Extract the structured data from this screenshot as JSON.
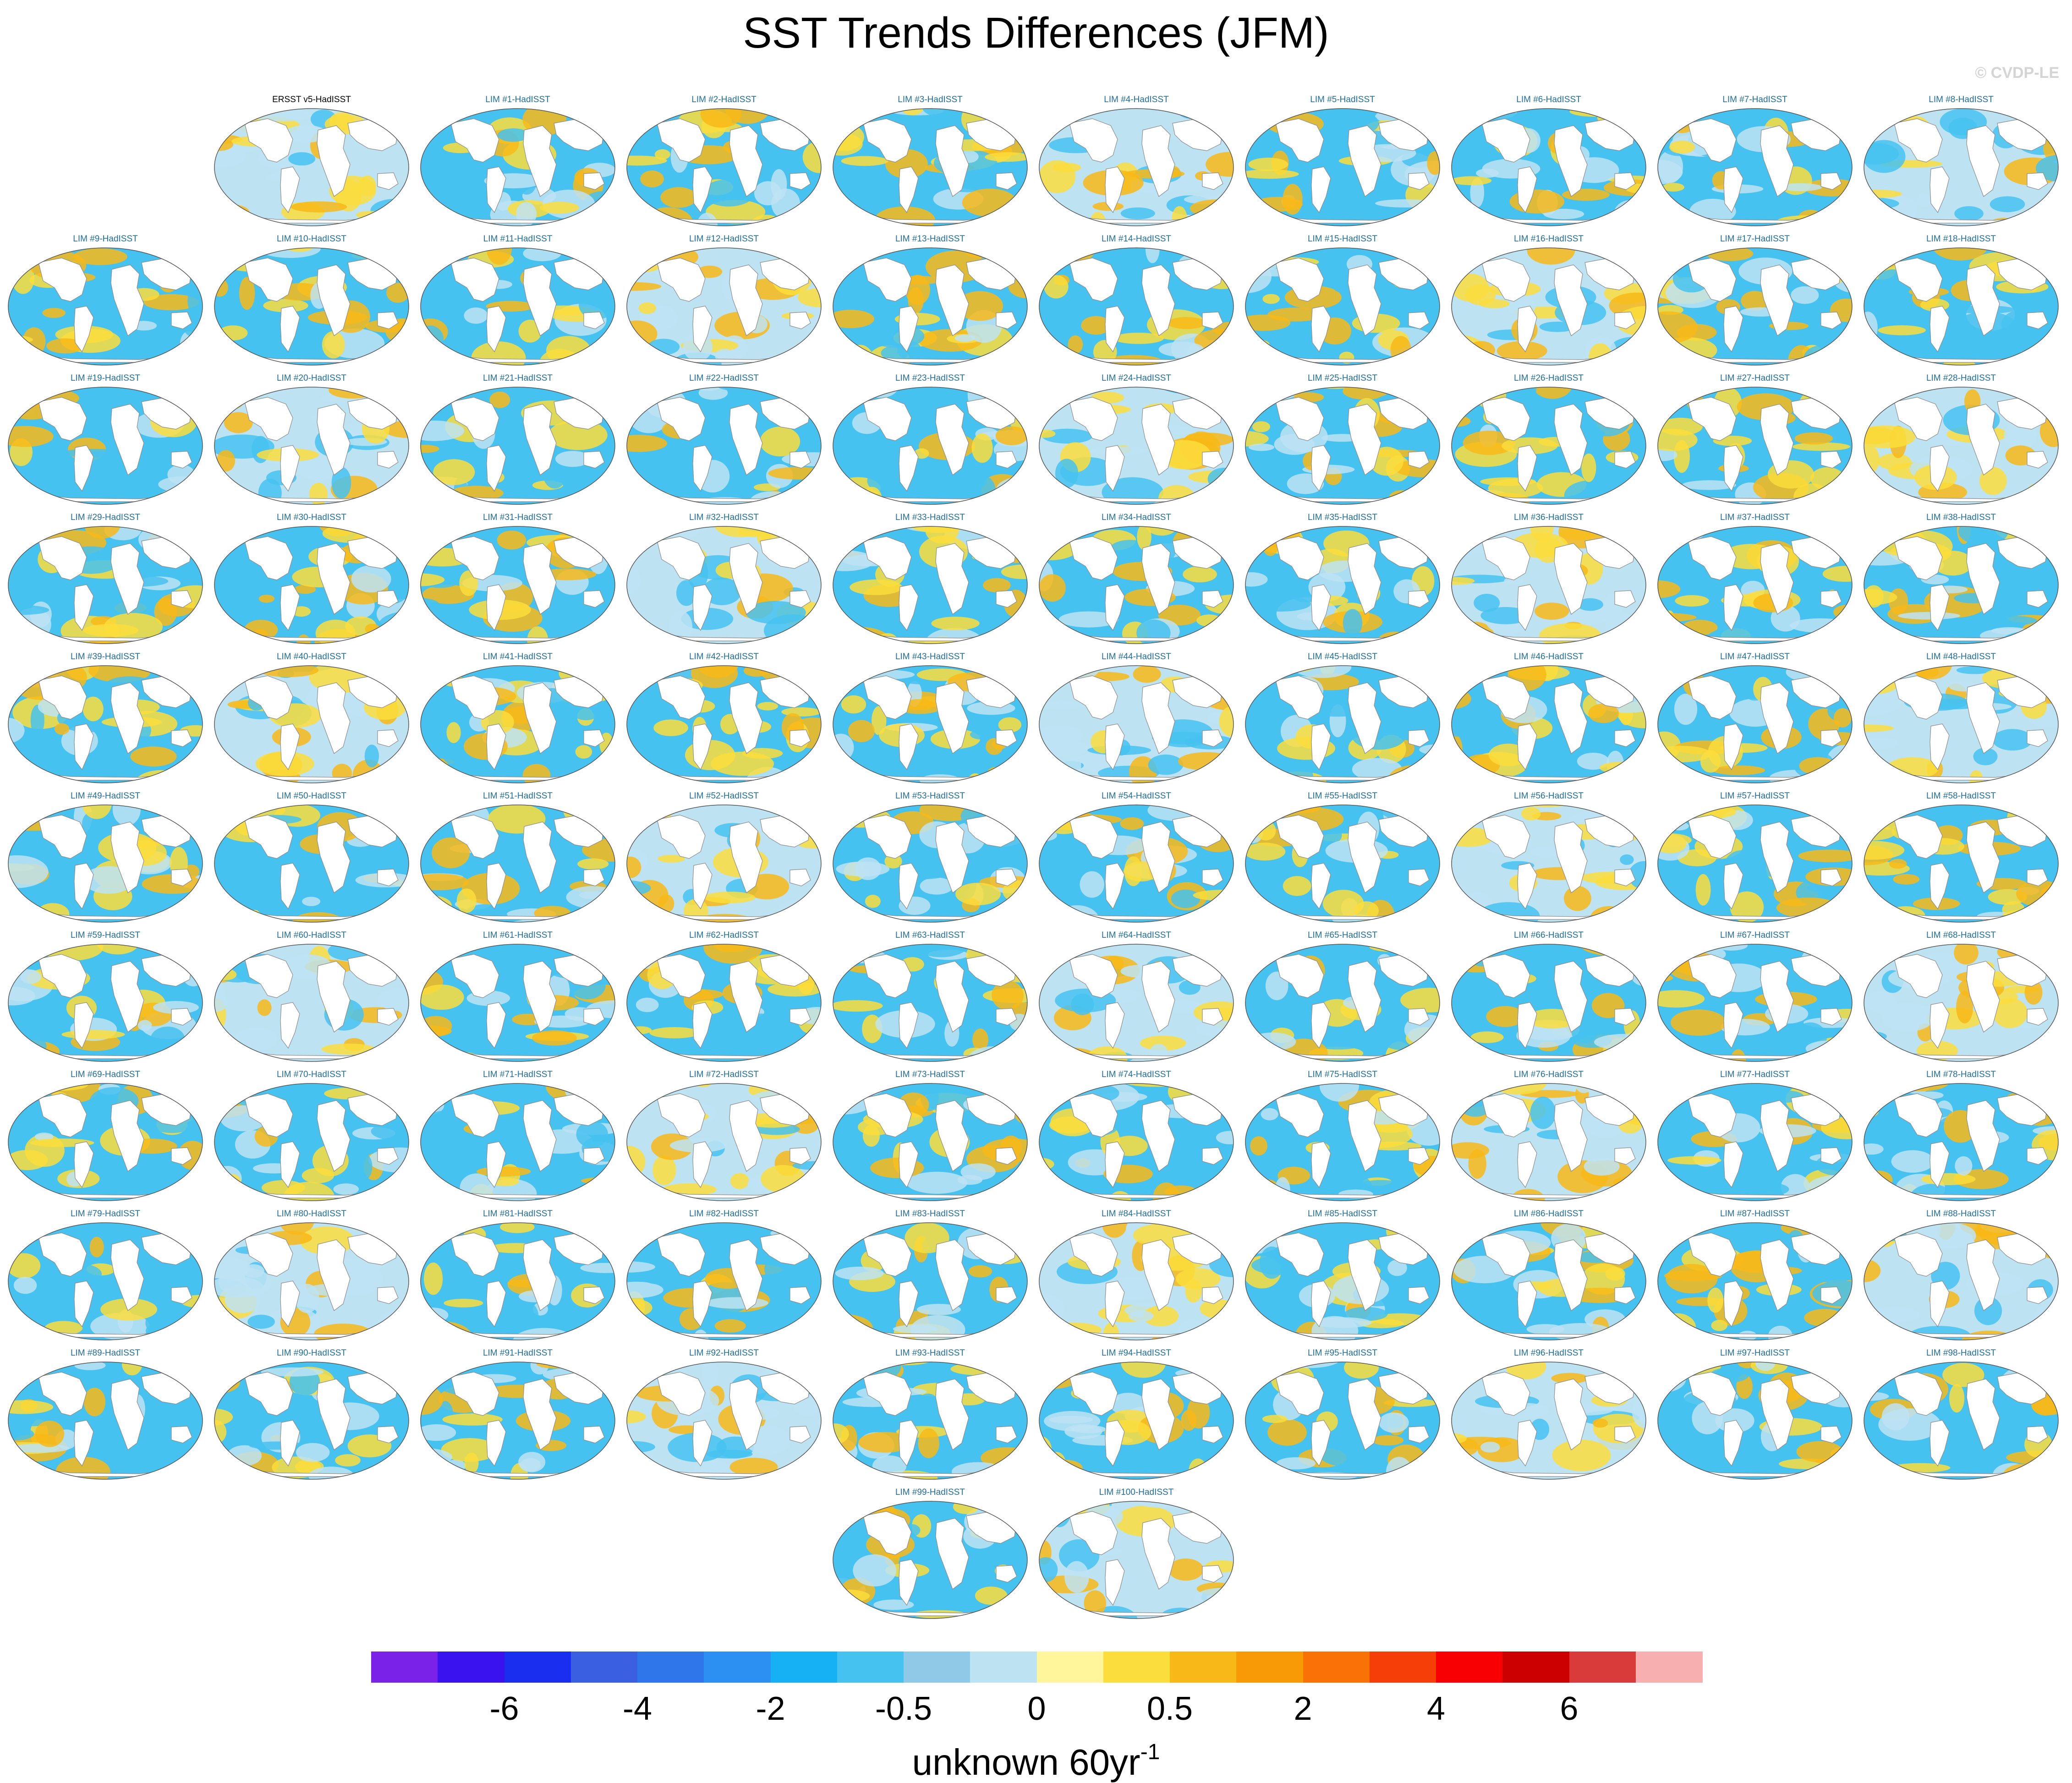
{
  "title": "SST Trends Differences (JFM)",
  "credit": "© CVDP-LE",
  "panels": [
    {
      "label": "ERSST v5-HadISST",
      "kind": "obs"
    },
    {
      "label": "LIM #1-HadISST"
    },
    {
      "label": "LIM #2-HadISST"
    },
    {
      "label": "LIM #3-HadISST"
    },
    {
      "label": "LIM #4-HadISST"
    },
    {
      "label": "LIM #5-HadISST"
    },
    {
      "label": "LIM #6-HadISST"
    },
    {
      "label": "LIM #7-HadISST"
    },
    {
      "label": "LIM #8-HadISST"
    },
    {
      "label": "LIM #9-HadISST"
    },
    {
      "label": "LIM #10-HadISST"
    },
    {
      "label": "LIM #11-HadISST"
    },
    {
      "label": "LIM #12-HadISST"
    },
    {
      "label": "LIM #13-HadISST"
    },
    {
      "label": "LIM #14-HadISST"
    },
    {
      "label": "LIM #15-HadISST"
    },
    {
      "label": "LIM #16-HadISST"
    },
    {
      "label": "LIM #17-HadISST"
    },
    {
      "label": "LIM #18-HadISST"
    },
    {
      "label": "LIM #19-HadISST"
    },
    {
      "label": "LIM #20-HadISST"
    },
    {
      "label": "LIM #21-HadISST"
    },
    {
      "label": "LIM #22-HadISST"
    },
    {
      "label": "LIM #23-HadISST"
    },
    {
      "label": "LIM #24-HadISST"
    },
    {
      "label": "LIM #25-HadISST"
    },
    {
      "label": "LIM #26-HadISST"
    },
    {
      "label": "LIM #27-HadISST"
    },
    {
      "label": "LIM #28-HadISST"
    },
    {
      "label": "LIM #29-HadISST"
    },
    {
      "label": "LIM #30-HadISST"
    },
    {
      "label": "LIM #31-HadISST"
    },
    {
      "label": "LIM #32-HadISST"
    },
    {
      "label": "LIM #33-HadISST"
    },
    {
      "label": "LIM #34-HadISST"
    },
    {
      "label": "LIM #35-HadISST"
    },
    {
      "label": "LIM #36-HadISST"
    },
    {
      "label": "LIM #37-HadISST"
    },
    {
      "label": "LIM #38-HadISST"
    },
    {
      "label": "LIM #39-HadISST"
    },
    {
      "label": "LIM #40-HadISST"
    },
    {
      "label": "LIM #41-HadISST"
    },
    {
      "label": "LIM #42-HadISST"
    },
    {
      "label": "LIM #43-HadISST"
    },
    {
      "label": "LIM #44-HadISST"
    },
    {
      "label": "LIM #45-HadISST"
    },
    {
      "label": "LIM #46-HadISST"
    },
    {
      "label": "LIM #47-HadISST"
    },
    {
      "label": "LIM #48-HadISST"
    },
    {
      "label": "LIM #49-HadISST"
    },
    {
      "label": "LIM #50-HadISST"
    },
    {
      "label": "LIM #51-HadISST"
    },
    {
      "label": "LIM #52-HadISST"
    },
    {
      "label": "LIM #53-HadISST"
    },
    {
      "label": "LIM #54-HadISST"
    },
    {
      "label": "LIM #55-HadISST"
    },
    {
      "label": "LIM #56-HadISST"
    },
    {
      "label": "LIM #57-HadISST"
    },
    {
      "label": "LIM #58-HadISST"
    },
    {
      "label": "LIM #59-HadISST"
    },
    {
      "label": "LIM #60-HadISST"
    },
    {
      "label": "LIM #61-HadISST"
    },
    {
      "label": "LIM #62-HadISST"
    },
    {
      "label": "LIM #63-HadISST"
    },
    {
      "label": "LIM #64-HadISST"
    },
    {
      "label": "LIM #65-HadISST"
    },
    {
      "label": "LIM #66-HadISST"
    },
    {
      "label": "LIM #67-HadISST"
    },
    {
      "label": "LIM #68-HadISST"
    },
    {
      "label": "LIM #69-HadISST"
    },
    {
      "label": "LIM #70-HadISST"
    },
    {
      "label": "LIM #71-HadISST"
    },
    {
      "label": "LIM #72-HadISST"
    },
    {
      "label": "LIM #73-HadISST"
    },
    {
      "label": "LIM #74-HadISST"
    },
    {
      "label": "LIM #75-HadISST"
    },
    {
      "label": "LIM #76-HadISST"
    },
    {
      "label": "LIM #77-HadISST"
    },
    {
      "label": "LIM #78-HadISST"
    },
    {
      "label": "LIM #79-HadISST"
    },
    {
      "label": "LIM #80-HadISST"
    },
    {
      "label": "LIM #81-HadISST"
    },
    {
      "label": "LIM #82-HadISST"
    },
    {
      "label": "LIM #83-HadISST"
    },
    {
      "label": "LIM #84-HadISST"
    },
    {
      "label": "LIM #85-HadISST"
    },
    {
      "label": "LIM #86-HadISST"
    },
    {
      "label": "LIM #87-HadISST"
    },
    {
      "label": "LIM #88-HadISST"
    },
    {
      "label": "LIM #89-HadISST"
    },
    {
      "label": "LIM #90-HadISST"
    },
    {
      "label": "LIM #91-HadISST"
    },
    {
      "label": "LIM #92-HadISST"
    },
    {
      "label": "LIM #93-HadISST"
    },
    {
      "label": "LIM #94-HadISST"
    },
    {
      "label": "LIM #95-HadISST"
    },
    {
      "label": "LIM #96-HadISST"
    },
    {
      "label": "LIM #97-HadISST"
    },
    {
      "label": "LIM #98-HadISST"
    },
    {
      "label": "LIM #99-HadISST"
    },
    {
      "label": "LIM #100-HadISST"
    }
  ],
  "colorbar": {
    "colors": [
      "#7b22e8",
      "#3a12ee",
      "#1a2ef0",
      "#3a5fe0",
      "#2f76ea",
      "#2a90f2",
      "#16b0f5",
      "#46c2f0",
      "#8ecae8",
      "#bde3f3",
      "#fff59a",
      "#fbdd3c",
      "#f8b818",
      "#f89a06",
      "#f87206",
      "#f53f06",
      "#f80003",
      "#cd0000",
      "#d93a3a",
      "#f7afaf"
    ],
    "tick_labels": [
      "-6",
      "-4",
      "-2",
      "-0.5",
      "0",
      "0.5",
      "2",
      "4",
      "6"
    ],
    "tick_boundaries": [
      2,
      4,
      6,
      8,
      10,
      12,
      14,
      16,
      18
    ],
    "units": "unknown 60yr",
    "units_superscript": "-1"
  },
  "map_colors": {
    "ocean_warm": "#fbdd3c",
    "ocean_warm_strong": "#f8b818",
    "ocean_cool": "#46c2f0",
    "ocean_cool_light": "#bde3f3",
    "land": "#ffffff",
    "coast": "#8c8c8c"
  }
}
